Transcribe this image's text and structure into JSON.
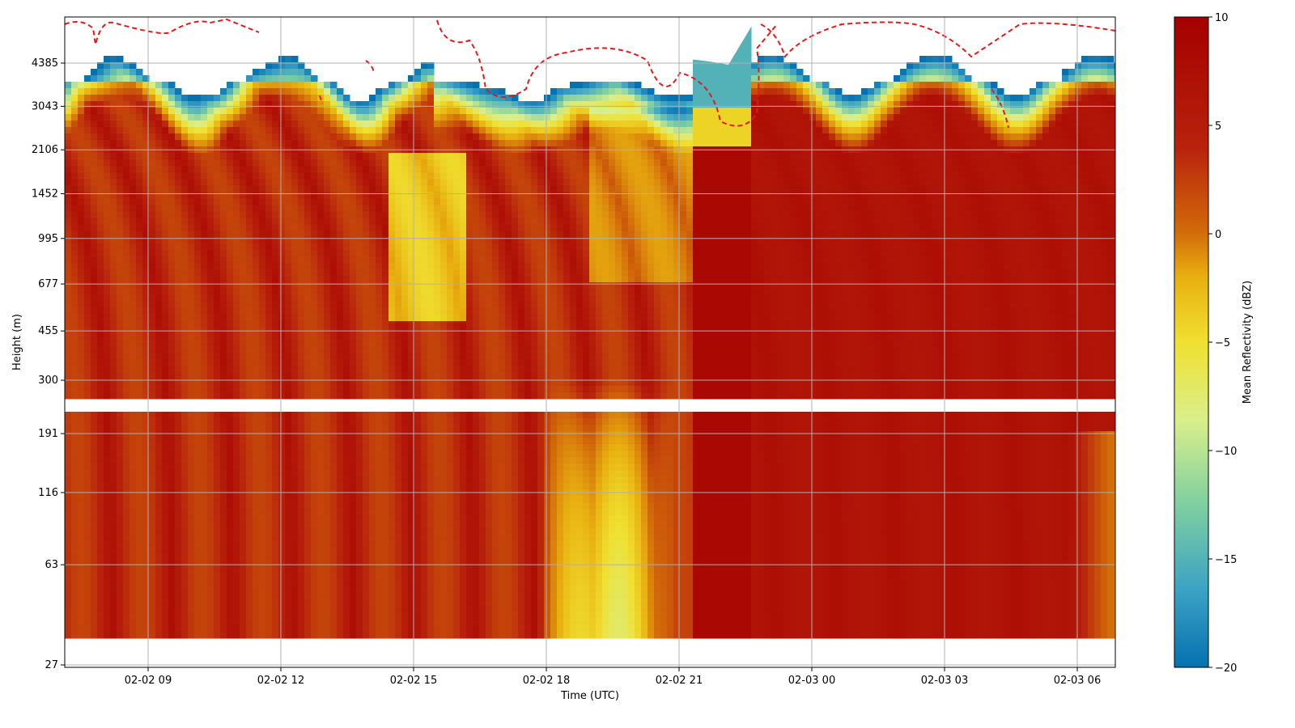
{
  "chart_data": {
    "type": "heatmap",
    "xlabel": "Time (UTC)",
    "ylabel": "Height (m)",
    "x_tick_labels": [
      "02-02 09",
      "02-02 12",
      "02-02 15",
      "02-02 18",
      "02-02 21",
      "02-03 00",
      "02-03 03",
      "02-03 06"
    ],
    "x_tick_values_hours": [
      9,
      12,
      15,
      18,
      21,
      24,
      27,
      30
    ],
    "x_range_hours": [
      7.1,
      30.9
    ],
    "y_scale": "log",
    "y_tick_labels": [
      "27",
      "63",
      "116",
      "191",
      "300",
      "455",
      "677",
      "995",
      "1452",
      "2106",
      "3043",
      "4385"
    ],
    "y_tick_values": [
      27,
      63,
      116,
      191,
      300,
      455,
      677,
      995,
      1452,
      2106,
      3043,
      4385
    ],
    "grid": true,
    "colorbar": {
      "label": "Mean Reflectivity (dBZ)",
      "range": [
        -20,
        10
      ],
      "tick_labels": [
        "10",
        "5",
        "0",
        "−5",
        "−10",
        "−15",
        "−20"
      ],
      "tick_values": [
        10,
        5,
        0,
        -5,
        -10,
        -15,
        -20
      ],
      "colormap": [
        "#0571b0",
        "#3ca3c4",
        "#7fcfa0",
        "#d9ef8b",
        "#f0e030",
        "#e8b010",
        "#d26a0a",
        "#b8220c",
        "#a50000"
      ]
    },
    "data_gaps": [
      {
        "height_range": [
          230,
          260
        ],
        "description": "white band"
      },
      {
        "height_range": [
          27,
          33
        ],
        "description": "white band"
      }
    ],
    "colors": {
      "contour": "#e31a1c",
      "grid": "#b0b0b0",
      "missing": "#ffffff"
    }
  }
}
